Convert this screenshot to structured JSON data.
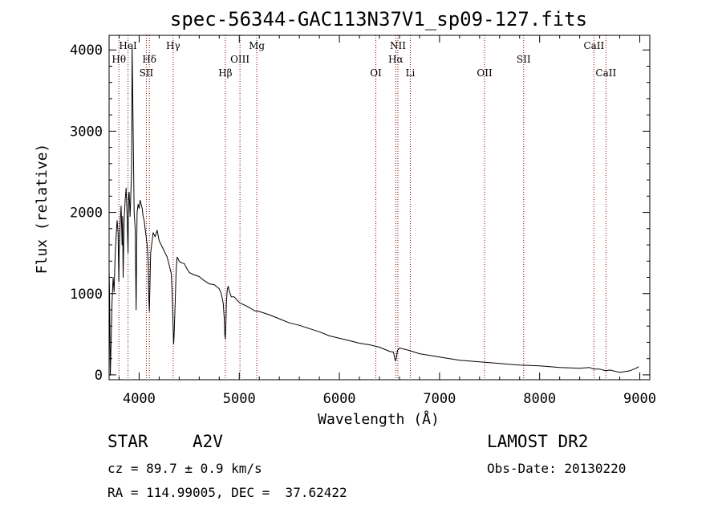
{
  "chart_data": {
    "type": "line",
    "title": "spec-56344-GAC113N37V1_sp09-127.fits",
    "xlabel": "Wavelength (Å)",
    "ylabel": "Flux (relative)",
    "xlim": [
      3700,
      9100
    ],
    "ylim": [
      -60,
      4180
    ],
    "xticks": [
      4000,
      5000,
      6000,
      7000,
      8000,
      9000
    ],
    "xtick_labels": [
      "4000",
      "5000",
      "6000",
      "7000",
      "8000",
      "9000"
    ],
    "yticks": [
      0,
      1000,
      2000,
      3000,
      4000
    ],
    "ytick_labels": [
      "0",
      "1000",
      "2000",
      "3000",
      "4000"
    ],
    "grid": false,
    "series": [
      {
        "x": [
          3700,
          3705,
          3712,
          3720,
          3730,
          3740,
          3750,
          3760,
          3770,
          3780,
          3790,
          3797,
          3800,
          3810,
          3820,
          3830,
          3835,
          3840,
          3850,
          3860,
          3870,
          3880,
          3885,
          3889,
          3895,
          3900,
          3910,
          3920,
          3925,
          3930,
          3940,
          3950,
          3960,
          3965,
          3970,
          3975,
          3980,
          3990,
          4000,
          4010,
          4020,
          4030,
          4040,
          4050,
          4060,
          4070,
          4080,
          4090,
          4095,
          4102,
          4108,
          4115,
          4125,
          4140,
          4160,
          4180,
          4200,
          4220,
          4240,
          4260,
          4280,
          4300,
          4320,
          4330,
          4340,
          4345,
          4350,
          4360,
          4370,
          4380,
          4400,
          4420,
          4450,
          4480,
          4500,
          4550,
          4600,
          4650,
          4700,
          4750,
          4800,
          4820,
          4840,
          4850,
          4855,
          4861,
          4866,
          4872,
          4880,
          4890,
          4900,
          4920,
          4950,
          5000,
          5050,
          5100,
          5150,
          5200,
          5300,
          5400,
          5500,
          5600,
          5700,
          5800,
          5900,
          6000,
          6100,
          6200,
          6300,
          6400,
          6500,
          6540,
          6555,
          6563,
          6570,
          6580,
          6600,
          6700,
          6800,
          6900,
          7000,
          7200,
          7400,
          7600,
          7800,
          8000,
          8200,
          8400,
          8498,
          8542,
          8600,
          8662,
          8700,
          8800,
          8900,
          8960,
          8990
        ],
        "y": [
          1300,
          950,
          -5,
          400,
          900,
          1200,
          1020,
          1450,
          1700,
          1900,
          1750,
          1150,
          1500,
          1850,
          2080,
          1600,
          1950,
          1200,
          1900,
          2150,
          2300,
          1950,
          1700,
          1500,
          2200,
          2250,
          1950,
          2350,
          2600,
          4050,
          3000,
          2000,
          1800,
          1300,
          800,
          1500,
          2000,
          2100,
          2050,
          2150,
          2100,
          2050,
          1950,
          1900,
          1800,
          1700,
          1600,
          1400,
          1000,
          780,
          1100,
          1500,
          1600,
          1750,
          1700,
          1780,
          1650,
          1600,
          1550,
          1500,
          1450,
          1350,
          1250,
          1000,
          550,
          380,
          500,
          900,
          1300,
          1450,
          1400,
          1380,
          1370,
          1300,
          1260,
          1230,
          1210,
          1160,
          1120,
          1110,
          1060,
          1000,
          880,
          700,
          500,
          440,
          600,
          900,
          1050,
          1090,
          1030,
          960,
          960,
          890,
          860,
          830,
          790,
          780,
          740,
          690,
          640,
          610,
          570,
          530,
          480,
          450,
          420,
          390,
          370,
          340,
          290,
          280,
          190,
          170,
          220,
          300,
          330,
          300,
          260,
          240,
          220,
          180,
          160,
          140,
          120,
          110,
          90,
          80,
          90,
          70,
          70,
          50,
          60,
          30,
          50,
          80,
          100
        ]
      }
    ],
    "spectral_lines": [
      {
        "name": "Hθ",
        "x": 3798,
        "row": 2
      },
      {
        "name": "HeI",
        "x": 3889,
        "row": 1
      },
      {
        "name": "Hδ",
        "x": 4102,
        "row": 2
      },
      {
        "name": "SII",
        "x": 4072,
        "row": 3
      },
      {
        "name": "Hγ",
        "x": 4340,
        "row": 1
      },
      {
        "name": "Hβ",
        "x": 4861,
        "row": 3
      },
      {
        "name": "OIII",
        "x": 5007,
        "row": 2
      },
      {
        "name": "Mg",
        "x": 5175,
        "row": 1
      },
      {
        "name": "OI",
        "x": 6364,
        "row": 3
      },
      {
        "name": "NII",
        "x": 6584,
        "row": 1
      },
      {
        "name": "Hα",
        "x": 6563,
        "row": 2
      },
      {
        "name": "Li",
        "x": 6708,
        "row": 3
      },
      {
        "name": "OII",
        "x": 7450,
        "row": 3
      },
      {
        "name": "SII",
        "x": 7840,
        "row": 2
      },
      {
        "name": "CaII",
        "x": 8542,
        "row": 1
      },
      {
        "name": "CaII",
        "x": 8662,
        "row": 3
      }
    ],
    "line_color": "#000000",
    "marker_line_color": "#8b0000"
  },
  "info": {
    "object_class": "STAR",
    "subclass": "A2V",
    "survey": "LAMOST DR2",
    "redshift_text": "cz = 89.7 ± 0.9 km/s",
    "obs_date_text": "Obs-Date: 20130220",
    "coords_text": "RA = 114.99005, DEC =  37.62422"
  }
}
